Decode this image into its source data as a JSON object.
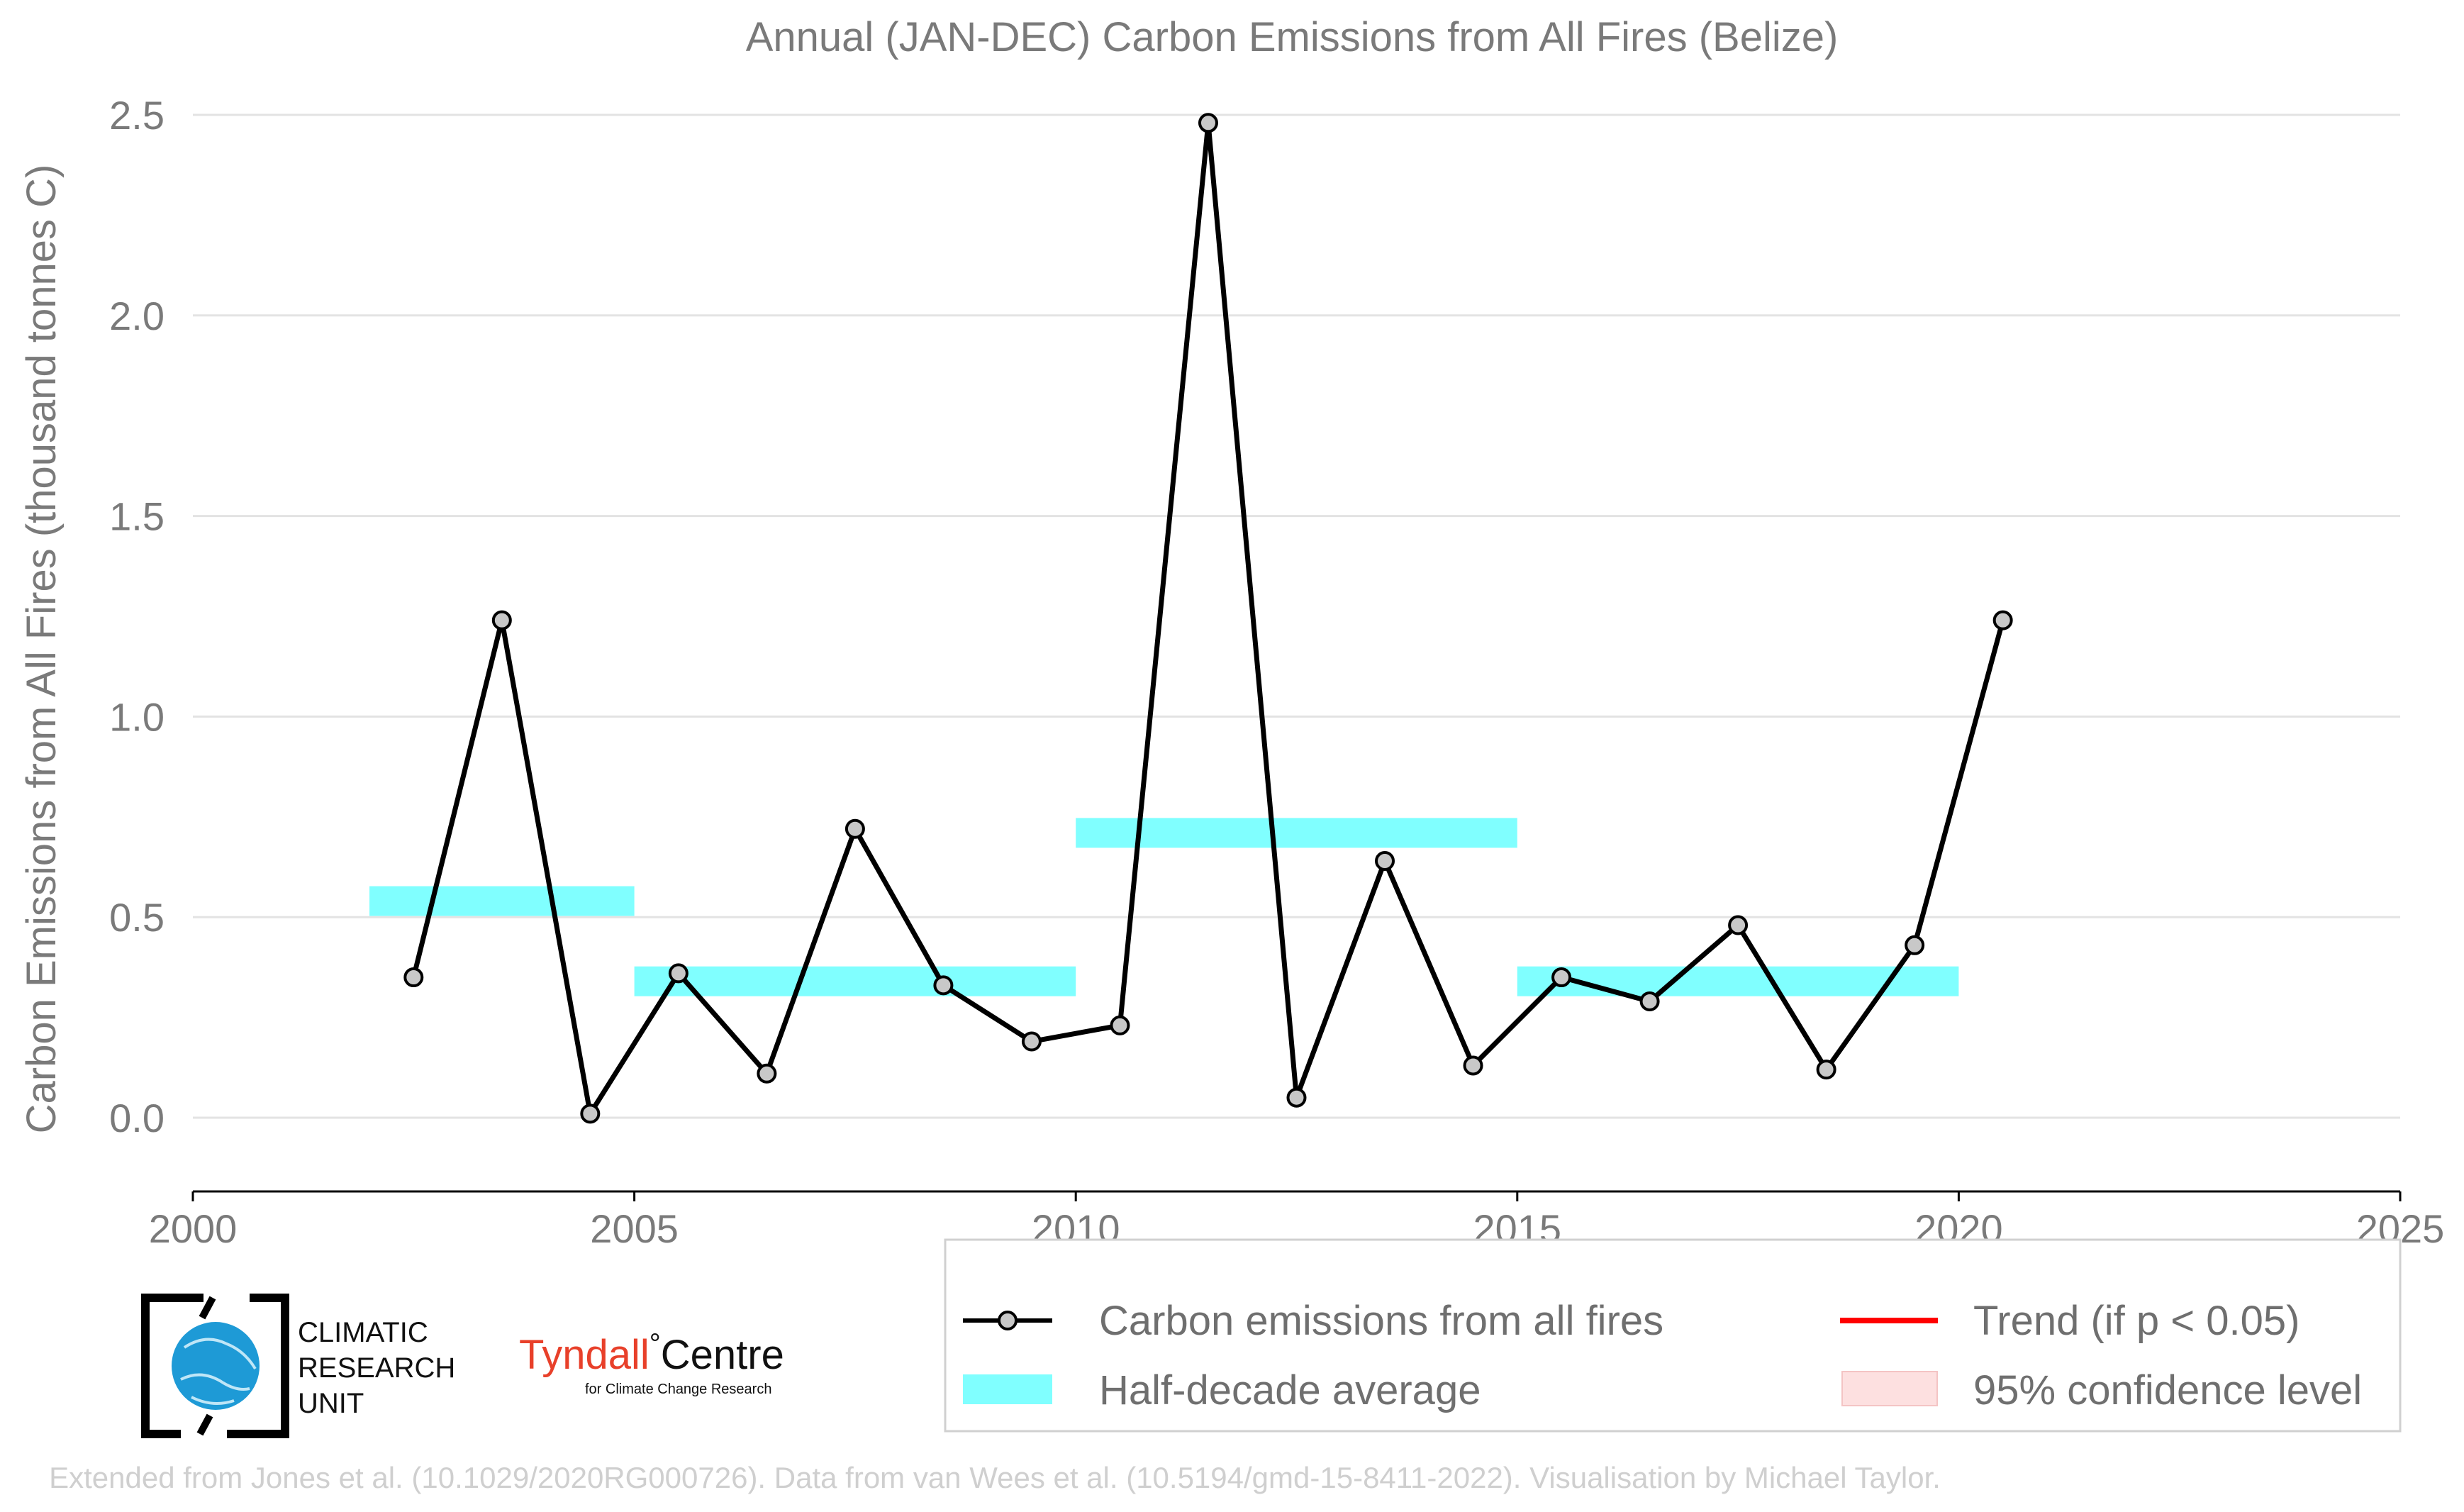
{
  "chart_data": {
    "type": "line",
    "title": "Annual (JAN-DEC) Carbon Emissions from All Fires (Belize)",
    "xlabel": "",
    "ylabel": "Carbon Emissions from All Fires (thousand tonnes C)",
    "xlim": [
      2000,
      2025
    ],
    "ylim": [
      -0.1,
      2.5
    ],
    "x_ticks": [
      "2000",
      "2005",
      "2010",
      "2015",
      "2020",
      "2025"
    ],
    "y_ticks": [
      "0.0",
      "0.5",
      "1.0",
      "1.5",
      "2.0",
      "2.5"
    ],
    "grid": true,
    "series": [
      {
        "name": "Carbon emissions from all fires",
        "color": "#000000",
        "marker_color": "#c8c8c8",
        "x": [
          2002.5,
          2003.5,
          2004.5,
          2005.5,
          2006.5,
          2007.5,
          2008.5,
          2009.5,
          2010.5,
          2011.5,
          2012.5,
          2013.5,
          2014.5,
          2015.5,
          2016.5,
          2017.5,
          2018.5,
          2019.5,
          2020.5
        ],
        "y": [
          0.35,
          1.24,
          0.01,
          0.36,
          0.11,
          0.72,
          0.33,
          0.19,
          0.23,
          2.48,
          0.05,
          0.64,
          0.13,
          0.35,
          0.29,
          0.48,
          0.12,
          0.43,
          1.24
        ]
      }
    ],
    "half_decade_average": {
      "name": "Half-decade average",
      "color": "#80ffff",
      "segments": [
        {
          "x_start": 2002,
          "x_end": 2005,
          "value": 0.54
        },
        {
          "x_start": 2005,
          "x_end": 2010,
          "value": 0.34
        },
        {
          "x_start": 2010,
          "x_end": 2015,
          "value": 0.71
        },
        {
          "x_start": 2015,
          "x_end": 2020,
          "value": 0.34
        }
      ]
    },
    "legend": {
      "placement": "bottom-right",
      "entries": [
        {
          "label": "Carbon emissions from all fires",
          "kind": "line-marker",
          "color": "#000000"
        },
        {
          "label": "Trend (if p < 0.05)",
          "kind": "line",
          "color": "#ff0000"
        },
        {
          "label": "Half-decade average",
          "kind": "band",
          "color": "#80ffff"
        },
        {
          "label": "95% confidence level",
          "kind": "patch",
          "color": "#fde0e0"
        }
      ]
    }
  },
  "logos": {
    "cru_line1": "CLIMATIC",
    "cru_line2": "RESEARCH",
    "cru_line3": "UNIT",
    "tyndall_main": "Tyndall",
    "tyndall_deg": "°",
    "tyndall_centre": "Centre",
    "tyndall_sub": "for Climate Change Research"
  },
  "footer": "Extended from Jones et al. (10.1029/2020RG000726). Data from van Wees et al. (10.5194/gmd-15-8411-2022). Visualisation by Michael Taylor."
}
